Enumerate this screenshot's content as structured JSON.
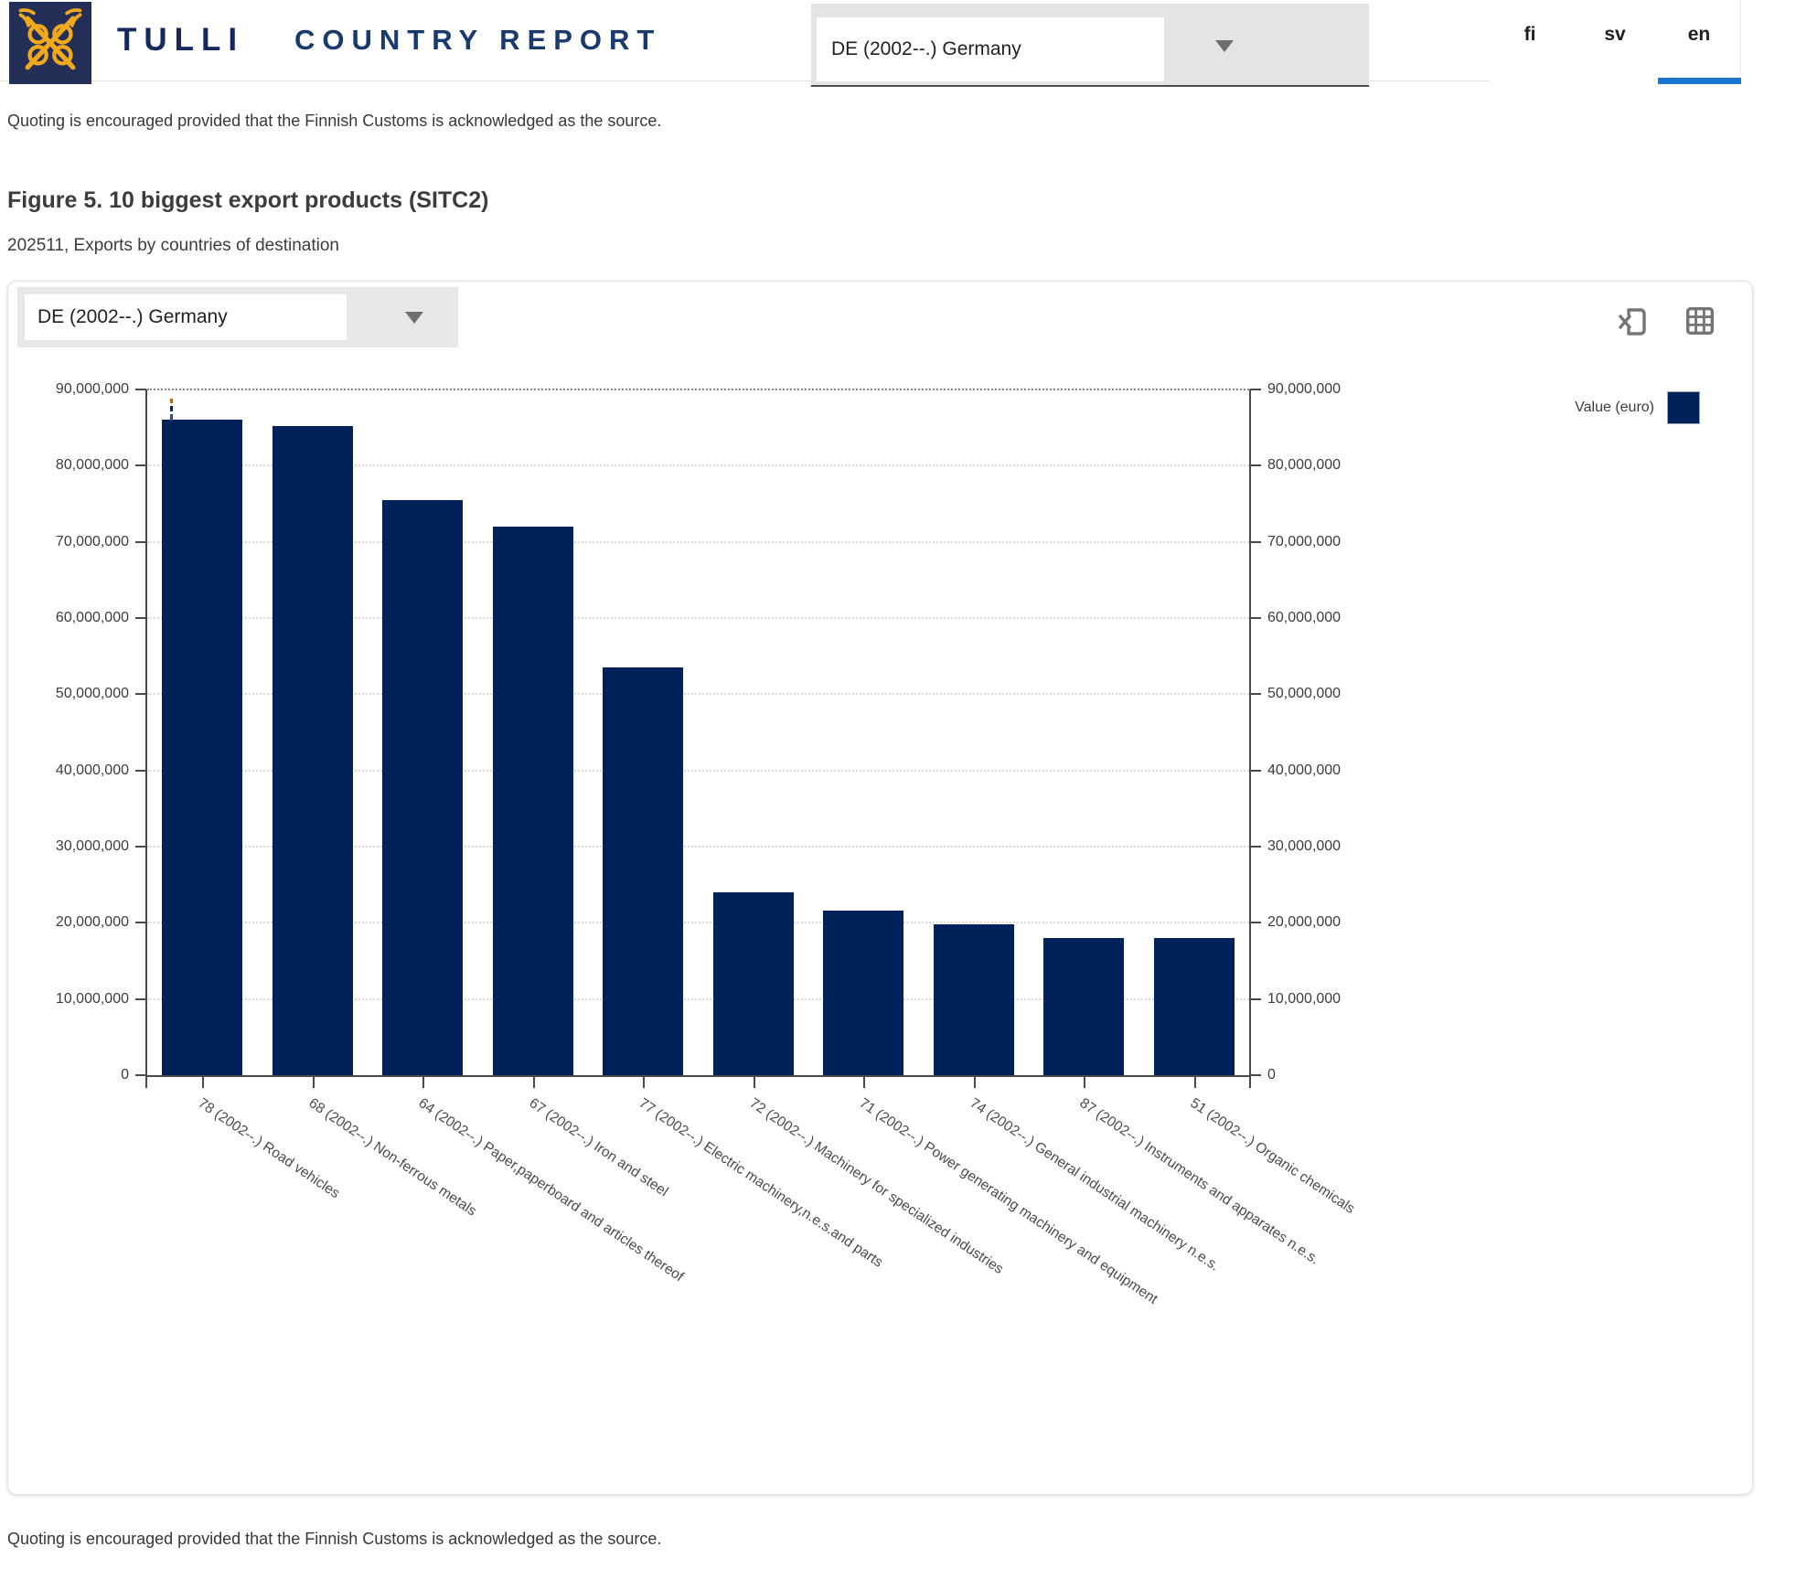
{
  "header": {
    "brand": "TULLI",
    "app_title": "COUNTRY REPORT",
    "country_selector": {
      "value": "DE (2002--.) Germany"
    },
    "languages": [
      "fi",
      "sv",
      "en"
    ],
    "active_language": "en"
  },
  "notes": {
    "top": "Quoting is encouraged provided that the Finnish Customs is acknowledged as the source.",
    "bottom": "Quoting is encouraged provided that the Finnish Customs is acknowledged as the source."
  },
  "figure": {
    "title": "Figure 5. 10 biggest export products (SITC2)",
    "subtitle": "202511, Exports by countries of destination"
  },
  "panel": {
    "country_selector": {
      "value": "DE (2002--.) Germany"
    },
    "toolbar_icons": [
      "export-to-excel-icon",
      "table-view-icon"
    ],
    "legend": {
      "label": "Value (euro)",
      "color": "#002159"
    }
  },
  "chart_data": {
    "type": "bar",
    "title": "",
    "categories": [
      "78 (2002--.) Road vehicles",
      "68 (2002--.) Non-ferrous metals",
      "64 (2002--.) Paper,paperboard and articles thereof",
      "67 (2002--.) Iron and steel",
      "77 (2002--.) Electric machinery,n.e.s.and parts",
      "72 (2002--.) Machinery for specialized industries",
      "71 (2002--.) Power generating machinery and equipment",
      "74 (2002--.) General industrial machinery n.e.s.",
      "87 (2002--.) Instruments and apparates n.e.s.",
      "51 (2002--.) Organic chemicals"
    ],
    "series": [
      {
        "name": "Value (euro)",
        "values": [
          86000000,
          85200000,
          75500000,
          72000000,
          53500000,
          24000000,
          21600000,
          19800000,
          18000000,
          18000000
        ]
      }
    ],
    "xlabel": "",
    "ylabel": "",
    "ylim": [
      0,
      90000000
    ],
    "ytick_values": [
      0,
      10000000,
      20000000,
      30000000,
      40000000,
      50000000,
      60000000,
      70000000,
      80000000,
      90000000
    ],
    "ytick_labels": [
      "0",
      "10,000,000",
      "20,000,000",
      "30,000,000",
      "40,000,000",
      "50,000,000",
      "60,000,000",
      "70,000,000",
      "80,000,000",
      "90,000,000"
    ],
    "grid": "dotted-horizontal",
    "legend_position": "top-right",
    "dual_y_axis": true,
    "bar_color": "#002159"
  }
}
